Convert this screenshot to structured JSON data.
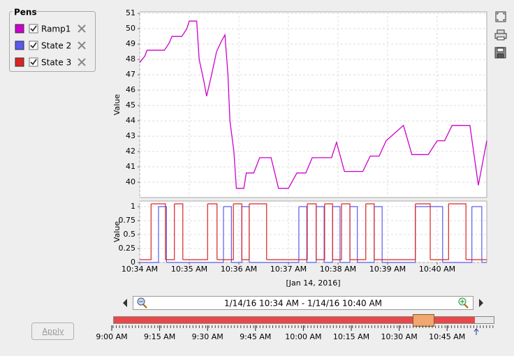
{
  "pens": {
    "title": "Pens"
  },
  "apply_button": "Apply",
  "chart_data": [
    {
      "type": "line",
      "ylabel": "Value",
      "xlim": [
        0,
        7
      ],
      "ylim": [
        39,
        51.1
      ],
      "yticks": [
        40,
        41,
        42,
        43,
        44,
        45,
        46,
        47,
        48,
        49,
        50,
        51
      ],
      "grid": true,
      "series": [
        {
          "name": "Ramp1",
          "color": "#cc00cc",
          "x": [
            0,
            0.1,
            0.15,
            0.5,
            0.6,
            0.65,
            0.85,
            0.95,
            1.0,
            1.15,
            1.2,
            1.3,
            1.35,
            1.45,
            1.55,
            1.65,
            1.72,
            1.78,
            1.82,
            1.9,
            1.95,
            2.1,
            2.15,
            2.3,
            2.42,
            2.65,
            2.8,
            3.0,
            3.17,
            3.35,
            3.48,
            3.87,
            3.97,
            4.13,
            4.5,
            4.65,
            4.83,
            4.97,
            5.32,
            5.49,
            5.82,
            6.0,
            6.15,
            6.3,
            6.66,
            6.83,
            7.0
          ],
          "values": [
            47.8,
            48.2,
            48.6,
            48.6,
            49.1,
            49.5,
            49.5,
            50.0,
            50.5,
            50.5,
            48.0,
            46.5,
            45.6,
            47.0,
            48.5,
            49.2,
            49.6,
            47.0,
            44.0,
            42.0,
            39.6,
            39.6,
            40.6,
            40.6,
            41.6,
            41.6,
            39.6,
            39.6,
            40.6,
            40.6,
            41.6,
            41.6,
            42.6,
            40.7,
            40.7,
            41.7,
            41.7,
            42.7,
            43.7,
            41.8,
            41.8,
            42.7,
            42.7,
            43.7,
            43.7,
            39.8,
            42.7
          ]
        }
      ]
    },
    {
      "type": "step",
      "ylabel": "Value",
      "xlabel": "[Jan 14, 2016]",
      "xlim": [
        0,
        7
      ],
      "ylim": [
        0,
        1.1
      ],
      "yticks": [
        0,
        0.25,
        0.5,
        0.75,
        1
      ],
      "grid": true,
      "xticks": [
        {
          "value": 0,
          "label": "10:34 AM"
        },
        {
          "value": 1,
          "label": "10:35 AM"
        },
        {
          "value": 2,
          "label": "10:36 AM"
        },
        {
          "value": 3,
          "label": "10:37 AM"
        },
        {
          "value": 4,
          "label": "10:38 AM"
        },
        {
          "value": 5,
          "label": "10:39 AM"
        },
        {
          "value": 6,
          "label": "10:40 AM"
        }
      ],
      "series": [
        {
          "name": "State 2",
          "color": "#5a5aee",
          "x": [
            0,
            0.38,
            0.54,
            1.69,
            1.85,
            2.06,
            2.21,
            3.21,
            3.37,
            3.56,
            3.72,
            3.89,
            4.04,
            4.24,
            4.39,
            4.73,
            4.89,
            5.56,
            6.11,
            6.7,
            6.9,
            7.0
          ],
          "values": [
            0,
            1,
            0,
            1,
            0,
            1,
            0,
            1,
            0,
            1,
            0,
            1,
            0,
            1,
            0,
            1,
            0,
            1,
            0,
            1,
            0,
            0
          ]
        },
        {
          "name": "State 3",
          "color": "#dd2222",
          "x": [
            0,
            0.23,
            0.52,
            0.7,
            0.87,
            1.37,
            1.56,
            1.89,
            2.06,
            2.21,
            2.56,
            3.38,
            3.56,
            3.73,
            3.89,
            4.07,
            4.24,
            4.56,
            4.73,
            5.56,
            5.86,
            6.23,
            6.58,
            7.0
          ],
          "values": [
            0.05,
            1.05,
            0.05,
            1.05,
            0.05,
            1.05,
            0.05,
            1.05,
            0.05,
            1.05,
            0.05,
            1.05,
            0.05,
            1.05,
            0.05,
            1.05,
            0.05,
            1.05,
            0.05,
            1.05,
            0.05,
            1.05,
            0.05,
            0.05
          ]
        }
      ]
    }
  ],
  "range_label": "1/14/16 10:34 AM - 1/14/16 10:40 AM",
  "timeline_ticks": [
    "9:00 AM",
    "9:15 AM",
    "9:30 AM",
    "9:45 AM",
    "10:00 AM",
    "10:15 AM",
    "10:30 AM",
    "10:45 AM"
  ]
}
